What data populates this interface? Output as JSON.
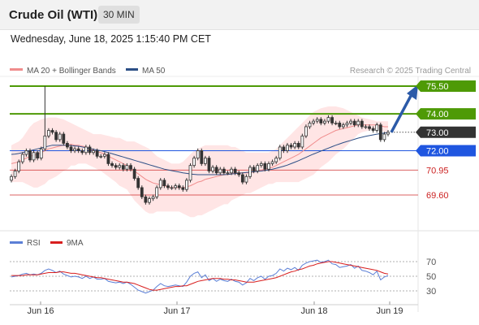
{
  "header": {
    "title": "Crude Oil (WTI)",
    "timeframe": "30 MIN"
  },
  "datetime": "Wednesday, June 18, 2025 1:15:40 PM CET",
  "legend": {
    "ma20_bb": "MA 20 + Bollinger Bands",
    "ma50": "MA 50",
    "credit": "Research © 2025 Trading Central"
  },
  "rsi_legend": {
    "rsi": "RSI",
    "ma9": "9MA"
  },
  "colors": {
    "green": "#4e9a06",
    "blue": "#1f56e0",
    "red": "#cc2222",
    "price": "#333333",
    "band": "#ffdada",
    "ma20": "#f08c8c",
    "ma50": "#2c4f86",
    "rsi": "#5b7fd6",
    "rsi_ma": "#d81e1e"
  },
  "chart_data": [
    {
      "type": "candlestick",
      "x_tick_labels": [
        "Jun 16",
        "Jun 17",
        "Jun 18",
        "Jun 19"
      ],
      "ylim": [
        68.8,
        76.2
      ],
      "levels": [
        {
          "value": 75.5,
          "label": "75.50",
          "role": "target",
          "color": "#4e9a06"
        },
        {
          "value": 74.0,
          "label": "74.00",
          "role": "resistance",
          "color": "#4e9a06"
        },
        {
          "value": 73.0,
          "label": "73.00",
          "role": "current",
          "color": "#333333"
        },
        {
          "value": 72.0,
          "label": "72.00",
          "role": "pivot",
          "color": "#1f56e0"
        },
        {
          "value": 70.95,
          "label": "70.95",
          "role": "support",
          "color": "#cc2222"
        },
        {
          "value": 69.6,
          "label": "69.60",
          "role": "support",
          "color": "#cc2222"
        }
      ],
      "close": [
        70.6,
        70.9,
        71.4,
        71.8,
        72.0,
        71.5,
        71.9,
        71.6,
        72.1,
        72.8,
        73.1,
        73.0,
        72.6,
        72.9,
        72.4,
        72.2,
        72.0,
        72.1,
        72.0,
        71.9,
        72.2,
        71.9,
        72.0,
        71.7,
        71.7,
        71.8,
        71.3,
        71.2,
        71.1,
        71.2,
        71.0,
        71.2,
        71.0,
        70.5,
        70.0,
        69.5,
        69.2,
        69.4,
        69.5,
        70.0,
        70.4,
        70.1,
        70.0,
        70.0,
        70.1,
        70.0,
        69.9,
        70.4,
        71.2,
        71.6,
        72.0,
        71.3,
        71.6,
        70.9,
        71.1,
        70.8,
        71.0,
        70.8,
        70.8,
        71.0,
        70.8,
        70.7,
        70.3,
        70.6,
        71.1,
        70.9,
        71.2,
        71.3,
        71.0,
        71.3,
        71.4,
        71.6,
        72.2,
        72.0,
        72.3,
        72.2,
        72.4,
        72.2,
        72.8,
        73.3,
        73.5,
        73.6,
        73.7,
        73.5,
        73.6,
        73.8,
        73.5,
        73.5,
        73.3,
        73.4,
        73.5,
        73.6,
        73.4,
        73.6,
        73.3,
        73.3,
        73.2,
        73.1,
        73.4,
        72.6,
        72.9,
        73.0
      ],
      "ma20": [
        71.3,
        71.35,
        71.4,
        71.5,
        71.6,
        71.7,
        71.75,
        71.8,
        71.9,
        72.0,
        72.1,
        72.15,
        72.2,
        72.25,
        72.3,
        72.3,
        72.35,
        72.3,
        72.3,
        72.25,
        72.2,
        72.1,
        72.0,
        71.95,
        71.9,
        71.8,
        71.7,
        71.6,
        71.5,
        71.4,
        71.3,
        71.2,
        71.05,
        70.9,
        70.75,
        70.6,
        70.45,
        70.35,
        70.25,
        70.2,
        70.15,
        70.1,
        70.05,
        70.0,
        70.0,
        70.0,
        70.0,
        70.05,
        70.1,
        70.2,
        70.3,
        70.35,
        70.45,
        70.5,
        70.55,
        70.6,
        70.65,
        70.7,
        70.7,
        70.75,
        70.8,
        70.8,
        70.8,
        70.8,
        70.8,
        70.85,
        70.9,
        70.95,
        71.0,
        71.05,
        71.1,
        71.2,
        71.3,
        71.4,
        71.5,
        71.6,
        71.7,
        71.8,
        71.95,
        72.1,
        72.25,
        72.4,
        72.55,
        72.7,
        72.8,
        72.9,
        73.0,
        73.1,
        73.15,
        73.2,
        73.25,
        73.3,
        73.35,
        73.4,
        73.4,
        73.4,
        73.4,
        73.4,
        73.4,
        73.35,
        73.3,
        73.3
      ],
      "bb_upper": [
        72.3,
        72.4,
        72.5,
        72.7,
        73.0,
        73.3,
        73.5,
        73.6,
        73.7,
        73.75,
        73.8,
        73.8,
        73.8,
        73.75,
        73.7,
        73.6,
        73.5,
        73.4,
        73.3,
        73.2,
        73.1,
        73.0,
        72.9,
        72.9,
        72.9,
        72.85,
        72.8,
        72.75,
        72.7,
        72.7,
        72.6,
        72.5,
        72.5,
        72.5,
        72.4,
        72.3,
        72.2,
        72.1,
        71.9,
        71.7,
        71.6,
        71.5,
        71.4,
        71.3,
        71.3,
        71.3,
        71.4,
        71.6,
        71.8,
        72.0,
        72.1,
        72.2,
        72.3,
        72.3,
        72.3,
        72.3,
        72.3,
        72.3,
        72.3,
        72.2,
        72.2,
        72.1,
        72.0,
        71.9,
        71.9,
        71.9,
        71.9,
        71.9,
        71.9,
        71.9,
        72.0,
        72.1,
        72.3,
        72.5,
        72.7,
        72.9,
        73.1,
        73.3,
        73.5,
        73.7,
        73.9,
        74.1,
        74.2,
        74.3,
        74.35,
        74.4,
        74.4,
        74.4,
        74.35,
        74.3,
        74.2,
        74.1,
        74.0,
        73.9,
        73.8,
        73.75,
        73.7,
        73.65,
        73.6,
        73.6,
        73.6,
        73.6
      ],
      "bb_lower": [
        70.3,
        70.3,
        70.3,
        70.3,
        70.2,
        70.1,
        70.0,
        70.0,
        70.1,
        70.2,
        70.4,
        70.5,
        70.6,
        70.75,
        70.9,
        71.0,
        71.2,
        71.2,
        71.3,
        71.3,
        71.3,
        71.2,
        71.1,
        71.0,
        70.9,
        70.75,
        70.6,
        70.45,
        70.3,
        70.1,
        70.0,
        69.9,
        69.6,
        69.3,
        69.1,
        68.9,
        68.7,
        68.6,
        68.6,
        68.7,
        68.7,
        68.7,
        68.7,
        68.7,
        68.7,
        68.7,
        68.6,
        68.5,
        68.4,
        68.4,
        68.5,
        68.5,
        68.6,
        68.7,
        68.8,
        68.9,
        69.0,
        69.1,
        69.1,
        69.3,
        69.4,
        69.5,
        69.6,
        69.7,
        69.7,
        69.8,
        69.9,
        70.0,
        70.1,
        70.2,
        70.2,
        70.3,
        70.3,
        70.3,
        70.3,
        70.3,
        70.3,
        70.3,
        70.4,
        70.5,
        70.6,
        70.7,
        70.9,
        71.1,
        71.25,
        71.4,
        71.6,
        71.8,
        71.95,
        72.1,
        72.3,
        72.5,
        72.7,
        72.9,
        73.0,
        73.05,
        73.1,
        73.15,
        73.2,
        73.1,
        73.0,
        73.0
      ],
      "ma50": [
        71.8,
        71.82,
        71.85,
        71.9,
        71.95,
        72.0,
        72.05,
        72.1,
        72.15,
        72.2,
        72.25,
        72.3,
        72.3,
        72.3,
        72.3,
        72.3,
        72.28,
        72.26,
        72.24,
        72.2,
        72.16,
        72.12,
        72.08,
        72.04,
        72.0,
        71.95,
        71.9,
        71.84,
        71.78,
        71.72,
        71.66,
        71.6,
        71.54,
        71.48,
        71.42,
        71.36,
        71.3,
        71.24,
        71.18,
        71.12,
        71.06,
        71.0,
        70.96,
        70.92,
        70.88,
        70.84,
        70.8,
        70.77,
        70.74,
        70.72,
        70.7,
        70.7,
        70.7,
        70.7,
        70.7,
        70.7,
        70.7,
        70.7,
        70.72,
        70.74,
        70.76,
        70.78,
        70.8,
        70.82,
        70.84,
        70.86,
        70.88,
        70.9,
        70.93,
        70.96,
        71.0,
        71.05,
        71.1,
        71.16,
        71.22,
        71.3,
        71.38,
        71.46,
        71.55,
        71.64,
        71.73,
        71.82,
        71.9,
        71.98,
        72.06,
        72.14,
        72.22,
        72.3,
        72.37,
        72.44,
        72.5,
        72.56,
        72.62,
        72.68,
        72.73,
        72.78,
        72.82,
        72.86,
        72.9,
        72.93,
        72.96,
        73.0
      ]
    },
    {
      "type": "line",
      "title": "RSI",
      "ylim": [
        20,
        80
      ],
      "y_ticks": [
        70,
        50,
        30
      ],
      "series": [
        {
          "name": "RSI",
          "values": [
            49,
            50,
            51,
            53,
            54,
            52,
            53,
            52,
            54,
            58,
            60,
            58,
            55,
            57,
            53,
            51,
            49,
            50,
            49,
            47,
            50,
            47,
            49,
            46,
            46,
            47,
            43,
            42,
            41,
            42,
            40,
            42,
            39,
            35,
            31,
            29,
            27,
            29,
            31,
            36,
            40,
            37,
            36,
            37,
            38,
            37,
            36,
            42,
            50,
            54,
            56,
            48,
            52,
            44,
            47,
            43,
            46,
            44,
            43,
            46,
            43,
            42,
            38,
            41,
            47,
            44,
            48,
            50,
            46,
            50,
            51,
            54,
            60,
            57,
            61,
            59,
            62,
            58,
            65,
            68,
            70,
            71,
            72,
            69,
            70,
            72,
            67,
            66,
            62,
            63,
            64,
            66,
            61,
            64,
            58,
            57,
            55,
            52,
            57,
            45,
            49,
            51
          ]
        },
        {
          "name": "9MA",
          "values": [
            51,
            51,
            51,
            51,
            52,
            52,
            52,
            52,
            53,
            54,
            55,
            55,
            55,
            56,
            56,
            55,
            54,
            54,
            53,
            52,
            51,
            50,
            49,
            48,
            48,
            47,
            46,
            45,
            44,
            43,
            42,
            42,
            41,
            40,
            38,
            36,
            34,
            32,
            31,
            31,
            32,
            33,
            34,
            35,
            36,
            36,
            37,
            37,
            39,
            41,
            43,
            44,
            45,
            46,
            47,
            47,
            47,
            46,
            46,
            45,
            45,
            44,
            43,
            42,
            42,
            42,
            43,
            44,
            45,
            46,
            47,
            48,
            50,
            52,
            54,
            56,
            57,
            59,
            60,
            62,
            64,
            65,
            67,
            68,
            69,
            70,
            70,
            69,
            68,
            67,
            66,
            65,
            64,
            63,
            62,
            61,
            60,
            59,
            58,
            56,
            54,
            53
          ]
        }
      ]
    }
  ]
}
